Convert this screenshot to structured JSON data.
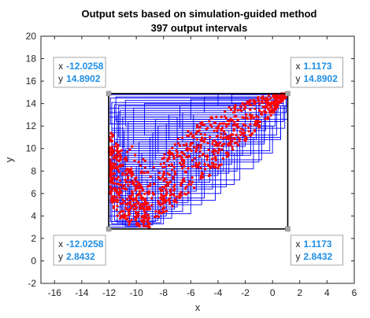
{
  "chart_data": {
    "type": "scatter",
    "title": "Output sets based on simulation-guided method",
    "subtitle": "397 output intervals",
    "xlabel": "x",
    "ylabel": "y",
    "xlim": [
      -17,
      6
    ],
    "ylim": [
      -2,
      20
    ],
    "xticks": [
      -16,
      -14,
      -12,
      -10,
      -8,
      -6,
      -4,
      -2,
      0,
      2,
      4,
      6
    ],
    "yticks": [
      -2,
      0,
      2,
      4,
      6,
      8,
      10,
      12,
      14,
      16,
      18,
      20
    ],
    "grid": false,
    "colors": {
      "intervals": "#0000ff",
      "points": "#ff0000",
      "bounding_box": "#000000",
      "tip": "#1f8ee6"
    },
    "bounding_box": {
      "xmin": -12.0258,
      "xmax": 1.1173,
      "ymin": 2.8432,
      "ymax": 14.8902
    },
    "datatips": [
      {
        "x_label": "x",
        "y_label": "y",
        "x": "-12.0258",
        "y": "14.8902",
        "anchor": [
          -12.0258,
          14.8902
        ],
        "side": "top-left"
      },
      {
        "x_label": "x",
        "y_label": "y",
        "x": "1.1173",
        "y": "14.8902",
        "anchor": [
          1.1173,
          14.8902
        ],
        "side": "top-right"
      },
      {
        "x_label": "x",
        "y_label": "y",
        "x": "-12.0258",
        "y": "2.8432",
        "anchor": [
          -12.0258,
          2.8432
        ],
        "side": "bottom-left"
      },
      {
        "x_label": "x",
        "y_label": "y",
        "x": "1.1173",
        "y": "2.8432",
        "anchor": [
          1.1173,
          2.8432
        ],
        "side": "bottom-right"
      }
    ],
    "intervals": [
      [
        -12.0,
        0.4,
        13.2,
        14.8
      ],
      [
        -11.5,
        0.8,
        12.4,
        14.6
      ],
      [
        -11.8,
        -0.5,
        11.6,
        14.1
      ],
      [
        -12.0,
        1.0,
        13.6,
        14.9
      ],
      [
        -10.8,
        0.2,
        12.0,
        14.3
      ],
      [
        -11.6,
        -1.2,
        10.8,
        13.9
      ],
      [
        -11.2,
        -2.0,
        10.2,
        13.4
      ],
      [
        -12.0,
        -1.6,
        9.4,
        13.2
      ],
      [
        -11.0,
        -0.2,
        9.8,
        12.8
      ],
      [
        -11.6,
        -3.0,
        8.6,
        12.6
      ],
      [
        -12.0,
        -2.6,
        8.0,
        12.2
      ],
      [
        -10.6,
        -1.0,
        8.8,
        12.4
      ],
      [
        -11.8,
        -4.0,
        7.6,
        11.8
      ],
      [
        -11.4,
        -4.6,
        7.0,
        11.2
      ],
      [
        -12.0,
        -3.4,
        6.6,
        11.4
      ],
      [
        -11.0,
        -2.4,
        7.2,
        10.8
      ],
      [
        -11.6,
        -5.6,
        6.2,
        10.6
      ],
      [
        -11.8,
        -5.0,
        5.6,
        10.2
      ],
      [
        -12.0,
        -6.2,
        5.2,
        9.8
      ],
      [
        -10.8,
        -3.8,
        6.0,
        10.0
      ],
      [
        -11.4,
        -7.0,
        4.8,
        9.4
      ],
      [
        -11.8,
        -6.6,
        4.4,
        9.0
      ],
      [
        -12.0,
        -7.8,
        4.0,
        8.6
      ],
      [
        -11.2,
        -5.2,
        5.0,
        9.2
      ],
      [
        -11.6,
        -8.4,
        3.6,
        8.2
      ],
      [
        -11.0,
        -8.8,
        3.2,
        7.6
      ],
      [
        -12.0,
        -9.2,
        3.0,
        7.2
      ],
      [
        -10.6,
        -7.4,
        3.8,
        8.0
      ],
      [
        -11.4,
        -9.6,
        3.4,
        6.8
      ],
      [
        -12.0,
        -10.0,
        3.0,
        6.4
      ],
      [
        -11.8,
        -8.0,
        3.3,
        6.2
      ],
      [
        -11.2,
        -10.2,
        3.6,
        5.8
      ],
      [
        -12.0,
        -9.4,
        3.2,
        5.4
      ],
      [
        -10.4,
        -6.0,
        4.2,
        7.4
      ],
      [
        -10.0,
        -4.2,
        5.4,
        8.4
      ],
      [
        -9.6,
        -2.8,
        6.8,
        9.6
      ],
      [
        -9.0,
        -1.4,
        8.2,
        11.0
      ],
      [
        -8.4,
        0.0,
        9.6,
        12.0
      ],
      [
        -7.6,
        0.6,
        10.8,
        13.0
      ],
      [
        -6.8,
        0.9,
        11.8,
        13.8
      ],
      [
        -6.0,
        1.1,
        12.6,
        14.4
      ],
      [
        -5.0,
        1.0,
        13.2,
        14.6
      ],
      [
        -4.0,
        1.1,
        13.8,
        14.9
      ],
      [
        -3.0,
        0.8,
        14.0,
        14.8
      ],
      [
        -10.2,
        -0.6,
        10.4,
        13.6
      ],
      [
        -9.4,
        0.3,
        11.2,
        14.0
      ],
      [
        -8.6,
        -0.8,
        9.0,
        12.6
      ],
      [
        -11.9,
        -1.0,
        12.2,
        14.5
      ],
      [
        -11.3,
        0.6,
        11.0,
        13.8
      ],
      [
        -10.9,
        -3.2,
        7.8,
        11.6
      ],
      [
        -11.7,
        -4.4,
        6.4,
        10.4
      ],
      [
        -11.5,
        -6.0,
        5.4,
        9.6
      ],
      [
        -11.1,
        -7.2,
        4.6,
        8.8
      ],
      [
        -11.9,
        -8.6,
        3.5,
        7.8
      ],
      [
        -10.5,
        -8.2,
        3.4,
        6.6
      ],
      [
        -10.8,
        -9.8,
        3.1,
        6.0
      ],
      [
        -12.0,
        -7.0,
        7.2,
        12.8
      ],
      [
        -11.4,
        -5.8,
        8.4,
        13.0
      ],
      [
        -9.8,
        -5.4,
        7.0,
        10.6
      ],
      [
        -8.8,
        -3.6,
        8.0,
        11.4
      ],
      [
        -7.8,
        -2.2,
        9.4,
        12.2
      ],
      [
        -6.6,
        -0.6,
        10.6,
        13.2
      ]
    ],
    "point_bands": [
      [
        -9.0,
        3.0,
        5.2
      ],
      [
        -9.6,
        3.0,
        6.6
      ],
      [
        -10.2,
        3.0,
        8.0
      ],
      [
        -10.8,
        3.4,
        9.4
      ],
      [
        -11.4,
        4.0,
        10.6
      ],
      [
        -11.8,
        5.0,
        11.4
      ],
      [
        -12.0,
        6.0,
        11.8
      ],
      [
        -8.4,
        3.6,
        8.4
      ],
      [
        -7.8,
        4.4,
        9.8
      ],
      [
        -7.0,
        5.2,
        10.8
      ],
      [
        -6.0,
        6.2,
        11.8
      ],
      [
        -5.0,
        7.2,
        12.6
      ],
      [
        -4.0,
        8.2,
        13.2
      ],
      [
        -3.0,
        9.4,
        13.8
      ],
      [
        -2.0,
        10.6,
        14.2
      ],
      [
        -1.0,
        11.8,
        14.6
      ],
      [
        0.0,
        13.0,
        14.8
      ],
      [
        0.6,
        14.0,
        14.9
      ],
      [
        1.0,
        14.6,
        14.9
      ]
    ]
  }
}
